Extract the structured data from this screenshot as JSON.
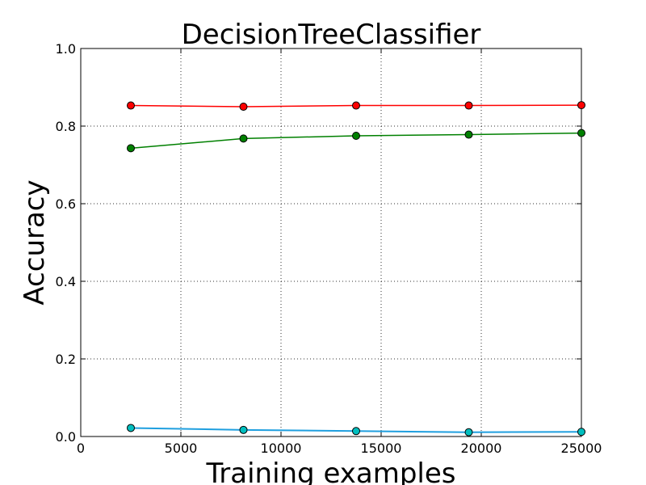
{
  "chart_data": {
    "type": "line",
    "title": "DecisionTreeClassifier",
    "xlabel": "Training examples",
    "ylabel": "Accuracy",
    "xlim": [
      0,
      25000
    ],
    "ylim": [
      0.0,
      1.0
    ],
    "grid": true,
    "x_ticks": [
      "0",
      "5000",
      "10000",
      "15000",
      "20000",
      "25000"
    ],
    "y_ticks": [
      "0.0",
      "0.2",
      "0.4",
      "0.6",
      "0.8",
      "1.0"
    ],
    "x": [
      2500,
      8125,
      13750,
      19375,
      25000
    ],
    "series": [
      {
        "color": "#ff0000",
        "marker_color": "#ff0000",
        "values": [
          0.853,
          0.85,
          0.853,
          0.853,
          0.854
        ]
      },
      {
        "color": "#008000",
        "marker_color": "#008000",
        "values": [
          0.743,
          0.768,
          0.775,
          0.778,
          0.782
        ]
      },
      {
        "color": "#1f9fdf",
        "marker_color": "#00bfbf",
        "values": [
          0.022,
          0.017,
          0.014,
          0.011,
          0.012
        ]
      }
    ]
  }
}
